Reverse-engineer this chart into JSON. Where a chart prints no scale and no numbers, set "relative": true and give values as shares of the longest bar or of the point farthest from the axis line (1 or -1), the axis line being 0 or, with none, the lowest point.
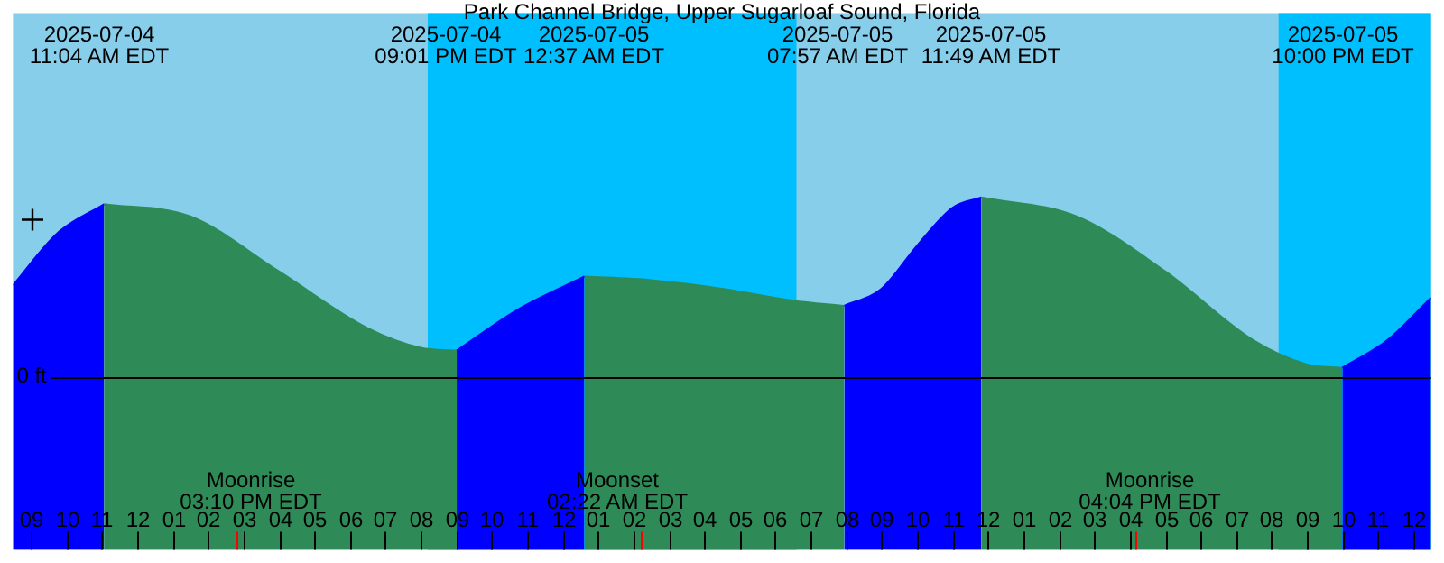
{
  "chart_data": {
    "type": "area",
    "title": "Park Channel Bridge, Upper Sugarloaf Sound, Florida",
    "relative": true,
    "xlim": [
      "2025-07-04T08:30",
      "2025-07-06T00:30"
    ],
    "xticks": [
      {
        "value": "2025-07-04T09:00",
        "label": "09"
      },
      {
        "value": "2025-07-04T10:00",
        "label": "10"
      },
      {
        "value": "2025-07-04T11:00",
        "label": "11"
      },
      {
        "value": "2025-07-04T12:00",
        "label": "12"
      },
      {
        "value": "2025-07-04T13:00",
        "label": "01"
      },
      {
        "value": "2025-07-04T14:00",
        "label": "02"
      },
      {
        "value": "2025-07-04T15:00",
        "label": "03"
      },
      {
        "value": "2025-07-04T16:00",
        "label": "04"
      },
      {
        "value": "2025-07-04T17:00",
        "label": "05"
      },
      {
        "value": "2025-07-04T18:00",
        "label": "06"
      },
      {
        "value": "2025-07-04T19:00",
        "label": "07"
      },
      {
        "value": "2025-07-04T20:00",
        "label": "08"
      },
      {
        "value": "2025-07-04T21:00",
        "label": "09"
      },
      {
        "value": "2025-07-04T22:00",
        "label": "10"
      },
      {
        "value": "2025-07-04T23:00",
        "label": "11"
      },
      {
        "value": "2025-07-05T00:00",
        "label": "12"
      },
      {
        "value": "2025-07-05T01:00",
        "label": "01"
      },
      {
        "value": "2025-07-05T02:00",
        "label": "02"
      },
      {
        "value": "2025-07-05T03:00",
        "label": "03"
      },
      {
        "value": "2025-07-05T04:00",
        "label": "04"
      },
      {
        "value": "2025-07-05T05:00",
        "label": "05"
      },
      {
        "value": "2025-07-05T06:00",
        "label": "06"
      },
      {
        "value": "2025-07-05T07:00",
        "label": "07"
      },
      {
        "value": "2025-07-05T08:00",
        "label": "08"
      },
      {
        "value": "2025-07-05T09:00",
        "label": "09"
      },
      {
        "value": "2025-07-05T10:00",
        "label": "10"
      },
      {
        "value": "2025-07-05T11:00",
        "label": "11"
      },
      {
        "value": "2025-07-05T12:00",
        "label": "12"
      },
      {
        "value": "2025-07-05T13:00",
        "label": "01"
      },
      {
        "value": "2025-07-05T14:00",
        "label": "02"
      },
      {
        "value": "2025-07-05T15:00",
        "label": "03"
      },
      {
        "value": "2025-07-05T16:00",
        "label": "04"
      },
      {
        "value": "2025-07-05T17:00",
        "label": "05"
      },
      {
        "value": "2025-07-05T18:00",
        "label": "06"
      },
      {
        "value": "2025-07-05T19:00",
        "label": "07"
      },
      {
        "value": "2025-07-05T20:00",
        "label": "08"
      },
      {
        "value": "2025-07-05T21:00",
        "label": "09"
      },
      {
        "value": "2025-07-05T22:00",
        "label": "10"
      },
      {
        "value": "2025-07-05T23:00",
        "label": "11"
      },
      {
        "value": "2025-07-06T00:00",
        "label": "12"
      }
    ],
    "series": [
      {
        "color": "#0000ff",
        "x": [
          "2025-07-04T08:30",
          "2025-07-04T09:45",
          "2025-07-04T11:04",
          "2025-07-04T16:00",
          "2025-07-04T21:01",
          "2025-07-04T22:45",
          "2025-07-05T00:37",
          "2025-07-05T04:00",
          "2025-07-05T07:57",
          "2025-07-05T09:00",
          "2025-07-05T10:00",
          "2025-07-05T11:00",
          "2025-07-05T11:49",
          "2025-07-05T16:00",
          "2025-07-05T22:00",
          "2025-07-05T23:15",
          "2025-07-06T00:30"
        ],
        "values": [
          0.51,
          0.8,
          0.962,
          null,
          0.144,
          0.375,
          0.558,
          null,
          0.394,
          0.49,
          0.73,
          0.942,
          1.0,
          null,
          0.048,
          0.2,
          0.44
        ]
      },
      {
        "color": "#2e8b57",
        "x": [
          "2025-07-04T11:04",
          "2025-07-04T13:30",
          "2025-07-04T16:00",
          "2025-07-04T18:30",
          "2025-07-04T20:00",
          "2025-07-04T21:01",
          "2025-07-04T22:45",
          "2025-07-05T00:37",
          "2025-07-05T02:30",
          "2025-07-05T04:30",
          "2025-07-05T06:30",
          "2025-07-05T07:57",
          "2025-07-05T09:00",
          "2025-07-05T11:49",
          "2025-07-05T14:30",
          "2025-07-05T17:00",
          "2025-07-05T19:30",
          "2025-07-05T21:00",
          "2025-07-05T22:00"
        ],
        "values": [
          0.962,
          0.894,
          0.587,
          0.27,
          0.16,
          0.144,
          null,
          0.558,
          0.538,
          0.49,
          0.423,
          0.394,
          null,
          1.0,
          0.894,
          0.587,
          0.2,
          0.067,
          0.048
        ]
      },
      {
        "type": "scatter",
        "color": "#000000",
        "marker": "cross",
        "x": [
          "2025-07-04T09:03"
        ],
        "values": [
          0.875
        ]
      }
    ],
    "bands": [
      {
        "axis": "x",
        "from": "2025-07-04T20:12",
        "to": "2025-07-05T06:36",
        "color": "#00bfff"
      },
      {
        "axis": "x",
        "from": "2025-07-05T20:12",
        "to": "2025-07-06T00:30",
        "color": "#00bfff"
      }
    ],
    "ref_lines": [
      {
        "axis": "y",
        "value": 0,
        "label": "0 ft",
        "color": "#000000"
      }
    ],
    "annotations": [
      "2025-07-04\n11:04 AM EDT",
      "2025-07-04\n09:01 PM EDT",
      "2025-07-05\n12:37 AM EDT",
      "2025-07-05\n07:57 AM EDT",
      "2025-07-05\n11:49 AM EDT",
      "2025-07-05\n10:00 PM EDT",
      "Moonrise\n03:10 PM EDT",
      "Moonset\n02:22 AM EDT",
      "Moonrise\n04:04 PM EDT"
    ]
  }
}
